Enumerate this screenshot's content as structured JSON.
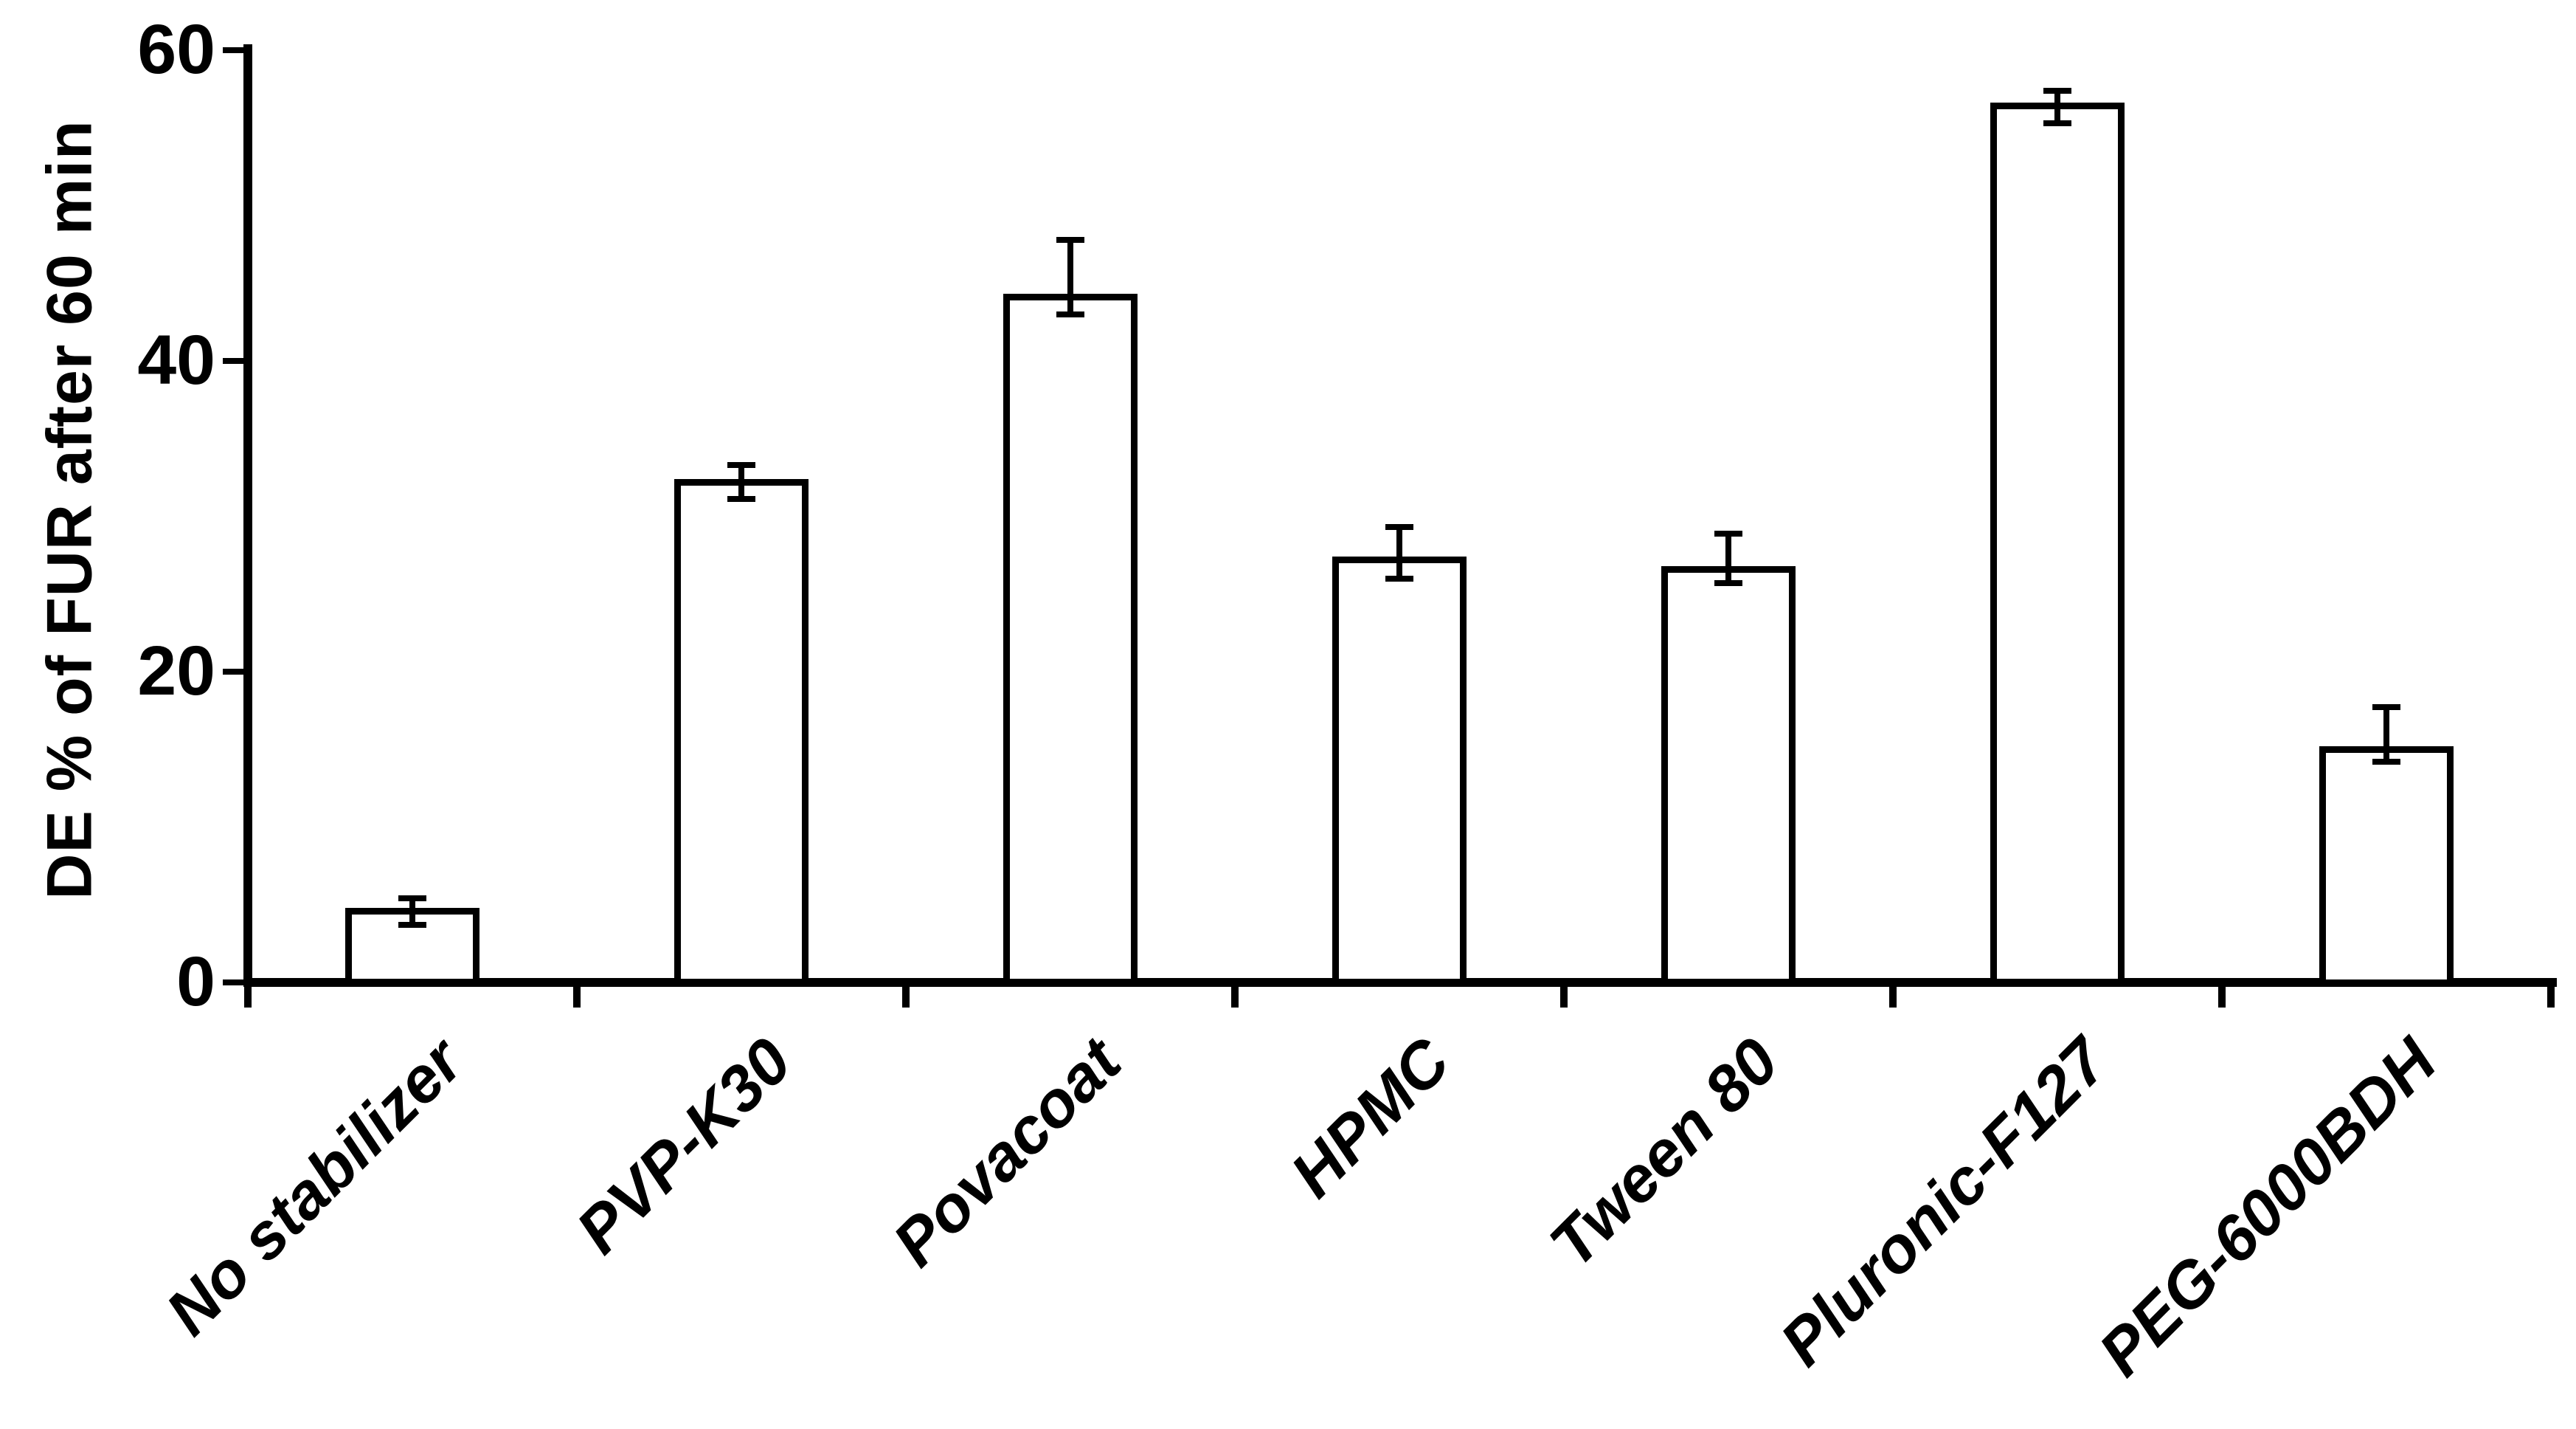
{
  "chart_data": {
    "type": "bar",
    "title": "",
    "xlabel": "",
    "ylabel": "DE % of FUR after 60 min",
    "ylim": [
      0,
      60
    ],
    "yticks": [
      0,
      20,
      40,
      60
    ],
    "grid": false,
    "legend": "none",
    "bar_fill": "#ffffff",
    "bar_border": "#000000",
    "categories": [
      "No stabilizer",
      "PVP-K30",
      "Povacoat",
      "HPMC",
      "Tween 80",
      "Pluronic-F127",
      "PEG-6000BDH"
    ],
    "values": [
      4.6,
      32.2,
      44.1,
      27.2,
      26.6,
      56.4,
      15.0
    ],
    "error_cap_upper_values": [
      5.4,
      33.3,
      47.8,
      29.3,
      28.9,
      57.4,
      17.7
    ],
    "error_cap_lower_values": [
      3.7,
      31.1,
      43.0,
      26.0,
      25.7,
      55.3,
      14.2
    ]
  },
  "colors": {
    "background": "#ffffff",
    "axis": "#000000",
    "text": "#000000"
  }
}
